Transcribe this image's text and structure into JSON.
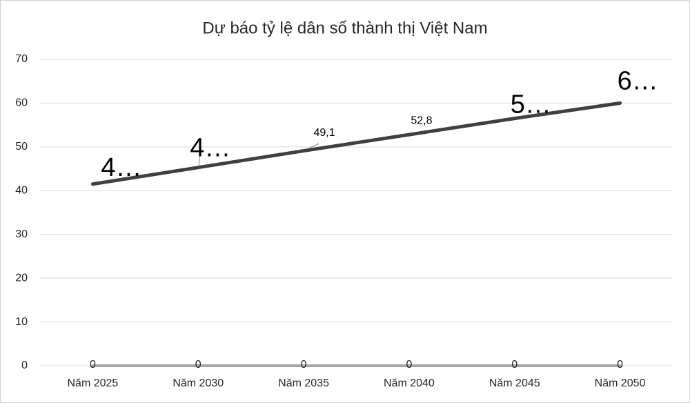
{
  "chart_data": {
    "type": "line",
    "title": "Dự báo tỷ lệ dân số thành thị Việt Nam",
    "categories": [
      "Năm 2025",
      "Năm 2030",
      "Năm 2035",
      "Năm 2040",
      "Năm 2045",
      "Năm 2050"
    ],
    "series": [
      {
        "color": "#404040",
        "values": [
          41.5,
          45.3,
          49.1,
          52.8,
          56.5,
          60
        ],
        "value_labels": [
          "4…",
          "4…",
          "49,1",
          "52,8",
          "5…",
          "6…"
        ]
      },
      {
        "color": "#a6a6a6",
        "values": [
          0,
          0,
          0,
          0,
          0,
          0
        ]
      }
    ],
    "ylim": [
      0,
      70
    ],
    "yticks": [
      0,
      10,
      20,
      30,
      40,
      50,
      60,
      70
    ],
    "grid": true
  }
}
